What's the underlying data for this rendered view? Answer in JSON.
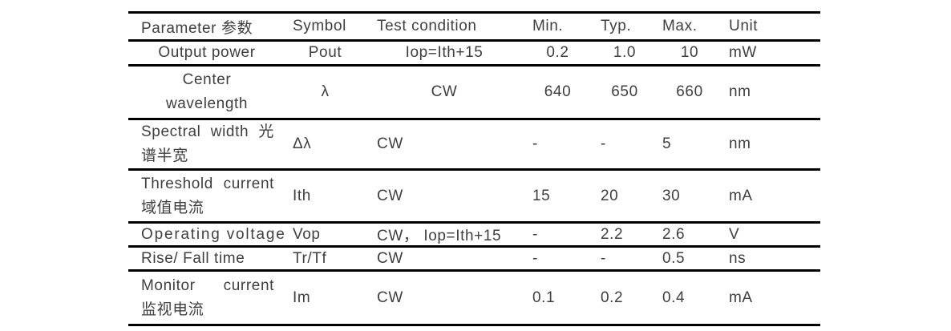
{
  "colors": {
    "text": "#3f3f3f",
    "rule": "#000000",
    "background": "#ffffff"
  },
  "table": {
    "columns": [
      {
        "key": "param",
        "label": "Parameter 参数"
      },
      {
        "key": "symbol",
        "label": "Symbol"
      },
      {
        "key": "test",
        "label": "Test condition"
      },
      {
        "key": "min",
        "label": "Min."
      },
      {
        "key": "typ",
        "label": "Typ."
      },
      {
        "key": "max",
        "label": "Max."
      },
      {
        "key": "unit",
        "label": "Unit"
      }
    ],
    "rows": [
      {
        "param_lines": [
          "Output power"
        ],
        "symbol": "Pout",
        "test": "Iop=Ith+15",
        "min": "0.2",
        "typ": "1.0",
        "max": "10",
        "unit": "mW"
      },
      {
        "param_lines": [
          "Center",
          "wavelength"
        ],
        "symbol": "λ",
        "test": "CW",
        "min": "640",
        "typ": "650",
        "max": "660",
        "unit": "nm"
      },
      {
        "param_lines": [
          "Spectral width 光",
          "谱半宽"
        ],
        "symbol": "Δλ",
        "test": "CW",
        "min": "-",
        "typ": "-",
        "max": "5",
        "unit": "nm"
      },
      {
        "param_lines": [
          "Threshold current",
          "域值电流"
        ],
        "symbol": "Ith",
        "test": "CW",
        "min": "15",
        "typ": "20",
        "max": "30",
        "unit": "mA"
      },
      {
        "param_lines": [
          "Operating voltage"
        ],
        "symbol": "Vop",
        "test": "CW， Iop=Ith+15",
        "min": "-",
        "typ": "2.2",
        "max": "2.6",
        "unit": "V"
      },
      {
        "param_lines": [
          "Rise/ Fall time"
        ],
        "symbol": "Tr/Tf",
        "test": "CW",
        "min": "-",
        "typ": "-",
        "max": "0.5",
        "unit": "ns"
      },
      {
        "param_lines": [
          "Monitor current",
          "监视电流"
        ],
        "symbol": "Im",
        "test": "CW",
        "min": "0.1",
        "typ": "0.2",
        "max": "0.4",
        "unit": "mA"
      }
    ]
  }
}
